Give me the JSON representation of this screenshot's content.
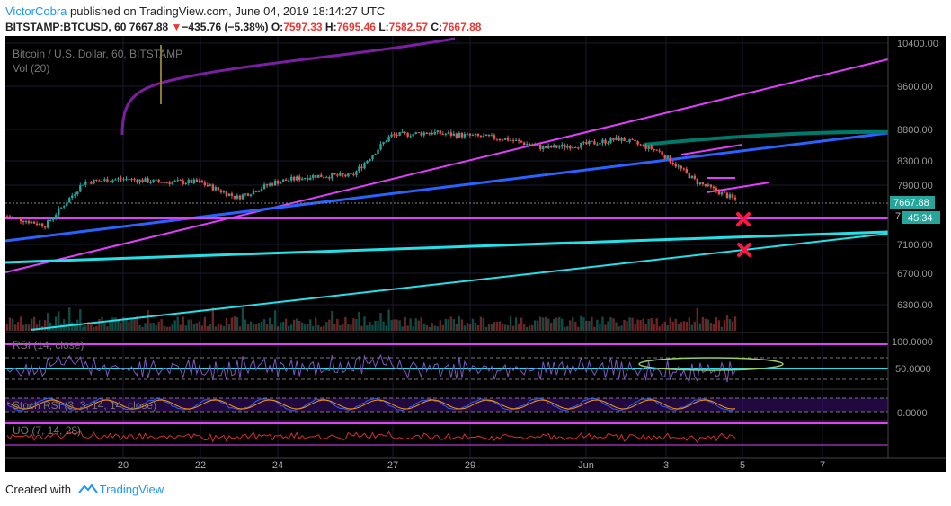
{
  "header": {
    "author": "VictorCobra",
    "published_text": "published on TradingView.com, June 04, 2019 18:14:27 UTC",
    "symbol": "BITSTAMP:BTCUSD, 60",
    "last": "7667.88",
    "change_arrow": "▼",
    "change": "−435.76 (−5.38%)",
    "open_label": "O:",
    "open": "7597.33",
    "high_label": "H:",
    "high": "7695.46",
    "low_label": "L:",
    "low": "7582.57",
    "close_label": "C:",
    "close": "7667.88"
  },
  "legend": {
    "main": "Bitcoin / U.S. Dollar, 60, BITSTAMP",
    "vol": "Vol (20)",
    "rsi": "RSI (14, close)",
    "stoch": "Stoch RSI (3, 3, 14, 14, close)",
    "uo": "UO (7, 14, 28)"
  },
  "price_badge": {
    "price": "7667.88",
    "countdown": "45:34",
    "partial_tick": "7"
  },
  "x_labels": [
    "20",
    "22",
    "24",
    "27",
    "29",
    "Jun",
    "3",
    "5",
    "7"
  ],
  "y_labels": [
    "10400.00",
    "9600.00",
    "8800.00",
    "8300.00",
    "7900.00",
    "7100.00",
    "6700.00",
    "6300.00"
  ],
  "rsi_labels": [
    "100.0000",
    "50.0000"
  ],
  "stoch_labels": [
    "0.0000"
  ],
  "footer": {
    "created": "Created with",
    "brand": "TradingView"
  },
  "colors": {
    "background": "#000000",
    "up_candle": "#26a69a",
    "down_candle": "#ef5350",
    "magenta_lines": "#e040fb",
    "blue_line": "#2962ff",
    "cyan_lines": "#26e0e8",
    "teal_line": "#00796b",
    "purple_ma": "#7b1fa2",
    "x_marks": "#ff1744",
    "accent_label": "#2196f3"
  },
  "chart_data": {
    "type": "candlestick",
    "title": "Bitcoin / U.S. Dollar, 60, BITSTAMP",
    "interval": "60",
    "ylim": [
      6000,
      10600
    ],
    "x_axis_labels": [
      "20",
      "22",
      "24",
      "27",
      "29",
      "Jun",
      "3",
      "5",
      "7"
    ],
    "y_axis_labels": [
      10400,
      9600,
      8800,
      8300,
      7900,
      7100,
      6700,
      6300
    ],
    "last_price": 7667.88,
    "price_path_approx": [
      [
        "May 18",
        7400
      ],
      [
        "May 19",
        7250
      ],
      [
        "May 19 late",
        7950
      ],
      [
        "May 20",
        8000
      ],
      [
        "May 21",
        7950
      ],
      [
        "May 22",
        7950
      ],
      [
        "May 23",
        7700
      ],
      [
        "May 24",
        7950
      ],
      [
        "May 25",
        8050
      ],
      [
        "May 26",
        8050
      ],
      [
        "May 27",
        8700
      ],
      [
        "May 28",
        8750
      ],
      [
        "May 29",
        8700
      ],
      [
        "May 30",
        8650
      ],
      [
        "May 31",
        8500
      ],
      [
        "Jun 1",
        8550
      ],
      [
        "Jun 2",
        8650
      ],
      [
        "Jun 3",
        8450
      ],
      [
        "Jun 4",
        7950
      ],
      [
        "Jun 4 18:00",
        7667.88
      ]
    ],
    "indicators": [
      {
        "name": "RSI (14, close)",
        "levels": [
          100,
          50
        ]
      },
      {
        "name": "Stoch RSI (3, 3, 14, 14, close)",
        "levels": [
          0
        ]
      },
      {
        "name": "UO (7, 14, 28)"
      },
      {
        "name": "Vol (20)"
      }
    ]
  }
}
